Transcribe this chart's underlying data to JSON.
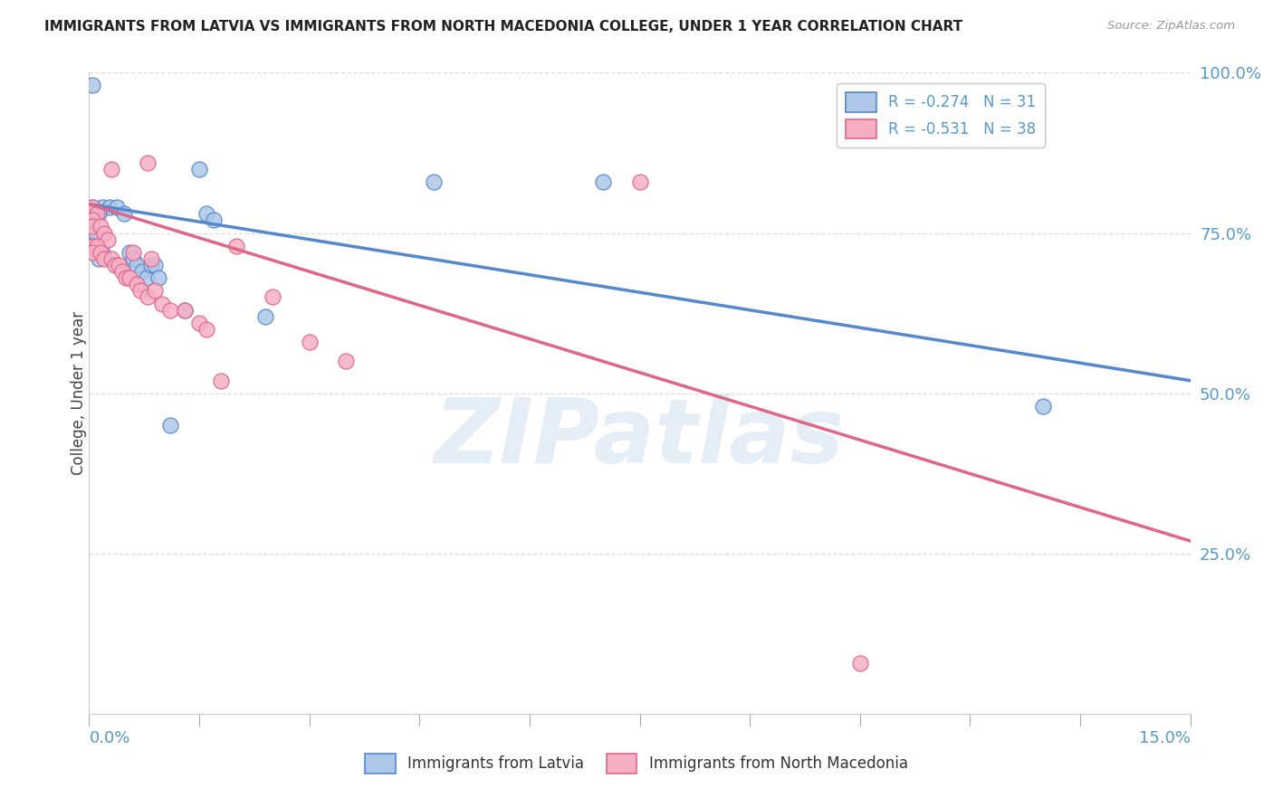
{
  "title": "IMMIGRANTS FROM LATVIA VS IMMIGRANTS FROM NORTH MACEDONIA COLLEGE, UNDER 1 YEAR CORRELATION CHART",
  "source": "Source: ZipAtlas.com",
  "ylabel": "College, Under 1 year",
  "legend_label1": "Immigrants from Latvia",
  "legend_label2": "Immigrants from North Macedonia",
  "r1": -0.274,
  "n1": 31,
  "r2": -0.531,
  "n2": 38,
  "xlim": [
    0.0,
    15.0
  ],
  "ylim": [
    0.0,
    100.0
  ],
  "right_ytick_vals": [
    25.0,
    50.0,
    75.0,
    100.0
  ],
  "color_blue_fill": "#adc8e8",
  "color_blue_edge": "#5588cc",
  "color_pink_fill": "#f5afc5",
  "color_pink_edge": "#e06688",
  "line_blue": "#5588cc",
  "line_pink": "#e06688",
  "axis_label_color": "#5599cc",
  "title_color": "#222222",
  "source_color": "#999999",
  "grid_color": "#dddddd",
  "background_color": "#ffffff",
  "watermark": "ZIPatlas",
  "blue_scatter_x": [
    0.18,
    0.28,
    0.13,
    0.08,
    0.04,
    0.04,
    0.04,
    0.09,
    0.04,
    0.18,
    0.13,
    0.38,
    0.48,
    0.55,
    0.6,
    0.65,
    0.72,
    0.78,
    0.85,
    0.9,
    0.95,
    1.1,
    1.3,
    1.5,
    1.6,
    1.7,
    2.4,
    4.7,
    7.0,
    13.0,
    0.05
  ],
  "blue_scatter_y": [
    79,
    79,
    78,
    78,
    79,
    77,
    75,
    75,
    73,
    72,
    71,
    79,
    78,
    72,
    71,
    70,
    69,
    68,
    70,
    70,
    68,
    45,
    63,
    85,
    78,
    77,
    62,
    83,
    83,
    48,
    98
  ],
  "pink_scatter_x": [
    0.05,
    0.1,
    0.05,
    0.05,
    0.15,
    0.2,
    0.25,
    0.05,
    0.1,
    0.05,
    0.15,
    0.2,
    0.3,
    0.35,
    0.4,
    0.45,
    0.5,
    0.55,
    0.6,
    0.65,
    0.7,
    0.8,
    0.85,
    0.9,
    1.0,
    1.1,
    1.3,
    1.5,
    1.6,
    1.8,
    2.0,
    2.5,
    3.0,
    3.5,
    0.3,
    0.8,
    10.5,
    7.5
  ],
  "pink_scatter_y": [
    79,
    78,
    77,
    76,
    76,
    75,
    74,
    73,
    73,
    72,
    72,
    71,
    71,
    70,
    70,
    69,
    68,
    68,
    72,
    67,
    66,
    65,
    71,
    66,
    64,
    63,
    63,
    61,
    60,
    52,
    73,
    65,
    58,
    55,
    85,
    86,
    8,
    83
  ],
  "blue_line_x": [
    0.0,
    15.0
  ],
  "blue_line_y": [
    79.5,
    52.0
  ],
  "pink_line_x": [
    0.0,
    15.0
  ],
  "pink_line_y": [
    79.5,
    27.0
  ],
  "xtick_positions": [
    0.0,
    1.5,
    3.0,
    4.5,
    6.0,
    7.5,
    9.0,
    10.5,
    12.0,
    13.5,
    15.0
  ]
}
